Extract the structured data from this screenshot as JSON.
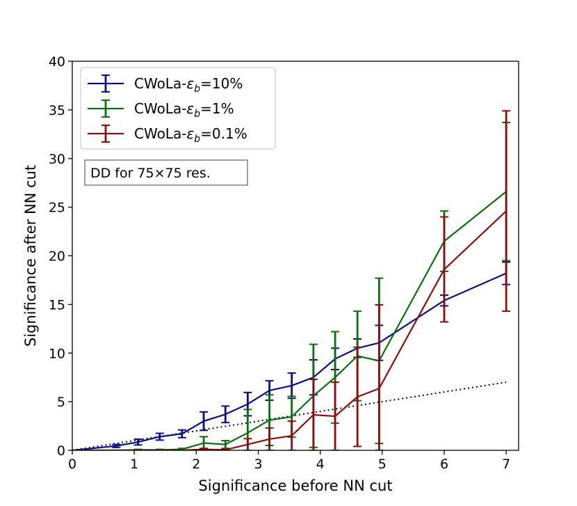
{
  "chart_data": {
    "type": "line",
    "title": "",
    "xlabel": "Significance before NN cut",
    "ylabel": "Significance after NN cut",
    "xlim": [
      0,
      7.2
    ],
    "ylim": [
      0,
      40
    ],
    "xticks": [
      0,
      1,
      2,
      3,
      4,
      5,
      6,
      7
    ],
    "yticks": [
      0,
      5,
      10,
      15,
      20,
      25,
      30,
      35,
      40
    ],
    "grid": false,
    "legend_position": "top-left",
    "annotation": "DD for 75×75 res.",
    "reference_line": {
      "name": "y = x",
      "x": [
        0,
        7
      ],
      "y": [
        0,
        7
      ],
      "style": "dotted",
      "color": "#000000"
    },
    "series": [
      {
        "name_prefix": "CWoLa-",
        "name_symbol": "ε",
        "name_sub": "b",
        "name_suffix": "=10%",
        "color": "#0d0d8c",
        "x": [
          0,
          0.71,
          1.06,
          1.41,
          1.77,
          2.12,
          2.47,
          2.83,
          3.18,
          3.54,
          3.89,
          4.24,
          4.6,
          4.95,
          6,
          7
        ],
        "y": [
          0,
          0.45,
          0.85,
          1.4,
          1.7,
          3.0,
          3.7,
          4.75,
          6.15,
          6.65,
          7.5,
          9.4,
          10.5,
          11.05,
          15.4,
          18.2
        ],
        "err": [
          0,
          0.15,
          0.3,
          0.35,
          0.4,
          0.95,
          0.85,
          1.2,
          1.0,
          1.3,
          1.8,
          1.1,
          0.95,
          1.8,
          0.55,
          1.15
        ]
      },
      {
        "name_prefix": "CWoLa-",
        "name_symbol": "ε",
        "name_sub": "b",
        "name_suffix": "=1%",
        "color": "#0c6e0c",
        "x": [
          0,
          0.71,
          1.06,
          1.41,
          1.77,
          2.12,
          2.47,
          2.83,
          3.18,
          3.54,
          3.89,
          4.24,
          4.6,
          4.95,
          6,
          7
        ],
        "y": [
          0,
          0,
          0.05,
          0.05,
          0.1,
          0.75,
          0.6,
          1.8,
          3.1,
          3.45,
          5.6,
          7.5,
          9.7,
          9.2,
          21.5,
          26.6
        ],
        "err": [
          0,
          0,
          0.05,
          0.05,
          0.1,
          0.65,
          0.4,
          2.4,
          2.6,
          2.1,
          5.3,
          4.7,
          4.6,
          8.5,
          3.1,
          7.1
        ]
      },
      {
        "name_prefix": "CWoLa-",
        "name_symbol": "ε",
        "name_sub": "b",
        "name_suffix": "=0.1%",
        "color": "#8b0d0d",
        "x": [
          0,
          0.71,
          1.06,
          1.41,
          1.77,
          2.12,
          2.47,
          2.83,
          3.18,
          3.54,
          3.89,
          4.24,
          4.6,
          4.95,
          6,
          7
        ],
        "y": [
          0,
          0,
          0,
          0,
          0,
          0.1,
          0.05,
          0.6,
          1.15,
          1.5,
          3.65,
          3.5,
          5.5,
          6.35,
          18.6,
          24.6
        ],
        "err": [
          0,
          0,
          0,
          0,
          0,
          0.1,
          0.05,
          0.6,
          1.15,
          1.5,
          3.65,
          3.5,
          5.1,
          8.6,
          5.4,
          10.3
        ]
      }
    ]
  }
}
